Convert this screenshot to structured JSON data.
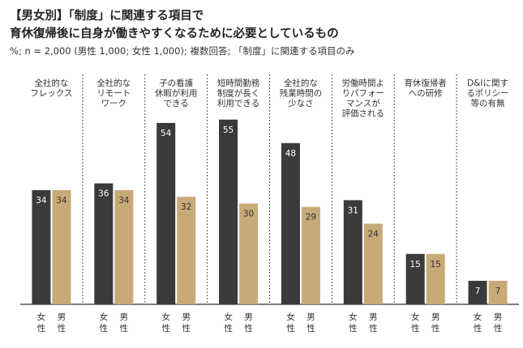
{
  "header": {
    "title_line1": "【男女別】「制度」に関連する項目で",
    "title_line2": "育休復帰後に自身が働きやすくなるために必要としているもの",
    "subtitle": "%; n = 2,000 (男性 1,000; 女性 1,000); 複数回答; 「制度」に関連する項目のみ"
  },
  "colors": {
    "female": "#3a3a3a",
    "male": "#c8aa78",
    "female_label": "#ffffff",
    "male_label": "#333333",
    "divider": "#555555",
    "baseline": "#333333"
  },
  "chart_data": {
    "type": "bar",
    "title": "",
    "xlabel": "",
    "ylabel": "",
    "ylim": [
      0,
      60
    ],
    "grid": false,
    "legend": "none",
    "categories": [
      [
        "全社的な",
        "フレックス"
      ],
      [
        "全社的な",
        "リモート",
        "ワーク"
      ],
      [
        "子の看護",
        "休暇が利用",
        "できる"
      ],
      [
        "短時間勤務",
        "制度が長く",
        "利用できる"
      ],
      [
        "全社的な",
        "残業時間の",
        "少なさ"
      ],
      [
        "労働時間よ",
        "りパフォー",
        "マンスが",
        "評価される"
      ],
      [
        "育休復帰者",
        "への研修"
      ],
      [
        "D&Iに関す",
        "るポリシー",
        "等の有無"
      ]
    ],
    "series": [
      {
        "name": "女性",
        "values": [
          34,
          36,
          54,
          55,
          48,
          31,
          15,
          7
        ]
      },
      {
        "name": "男性",
        "values": [
          34,
          34,
          32,
          30,
          29,
          24,
          15,
          7
        ]
      }
    ],
    "gender_labels": [
      [
        "女",
        "性"
      ],
      [
        "男",
        "性"
      ]
    ]
  }
}
